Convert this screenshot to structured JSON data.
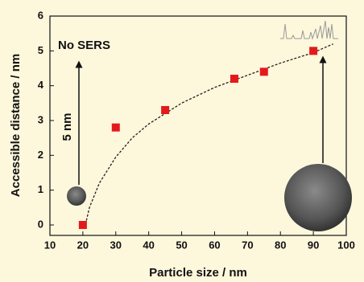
{
  "chart_data": {
    "type": "scatter",
    "x_label": "Particle size / nm",
    "y_label": "Accessible distance / nm",
    "x": [
      20,
      30,
      45,
      66,
      75,
      90
    ],
    "values": [
      0,
      2.8,
      3.3,
      4.2,
      4.4,
      5.0
    ],
    "color": "#e31a1c",
    "fit": {
      "x": [
        20.5,
        22,
        25,
        30,
        35,
        40,
        50,
        60,
        70,
        80,
        90,
        96
      ],
      "values": [
        -0.1,
        0.5,
        1.2,
        1.95,
        2.5,
        2.9,
        3.5,
        3.95,
        4.3,
        4.65,
        4.95,
        5.2
      ],
      "style": "dashed",
      "color": "#222222"
    },
    "xlim": [
      10,
      100
    ],
    "ylim": [
      -0.3,
      6
    ],
    "xticks": [
      10,
      20,
      30,
      40,
      50,
      60,
      70,
      80,
      90,
      100
    ],
    "yticks": [
      0,
      1,
      2,
      3,
      4,
      5,
      6
    ],
    "annotations": [
      "No SERS",
      "5 nm"
    ]
  }
}
